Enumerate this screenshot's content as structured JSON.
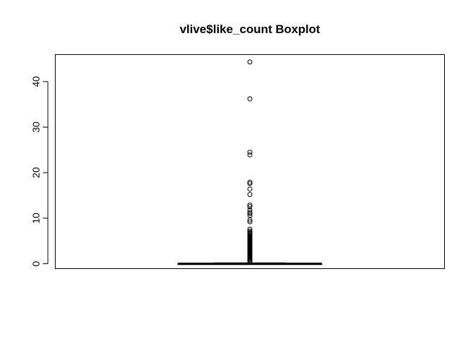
{
  "chart_data": {
    "type": "boxplot",
    "title": "vlive$like_count Boxplot",
    "xlabel": "",
    "ylabel": "",
    "ylim": [
      -1,
      46
    ],
    "yticks": [
      0,
      10,
      20,
      30,
      40
    ],
    "ytick_labels": [
      "0",
      "10",
      "20",
      "30",
      "40"
    ],
    "grid": false,
    "colors": {
      "stroke": "#000000",
      "background": "#ffffff"
    },
    "box": {
      "min": 0,
      "q1": 0,
      "median": 0,
      "q3": 0,
      "max": 0
    },
    "outliers": [
      44.3,
      36.2,
      24.5,
      23.9,
      17.9,
      17.6,
      16.4,
      15.2,
      12.9,
      12.5,
      11.8,
      11.3,
      11.0,
      10.6,
      9.6,
      9.2,
      7.6,
      7.2,
      6.9,
      6.7,
      6.5,
      6.3,
      6.1,
      5.9,
      5.7,
      5.5,
      5.3,
      5.1,
      4.9,
      4.7,
      4.5,
      4.3,
      4.1,
      3.9,
      3.7,
      3.5,
      3.3,
      3.1,
      2.9,
      2.7,
      2.5,
      2.3,
      2.1,
      1.9,
      1.7,
      1.5,
      1.3,
      1.1,
      0.9,
      0.7,
      0.5
    ]
  }
}
